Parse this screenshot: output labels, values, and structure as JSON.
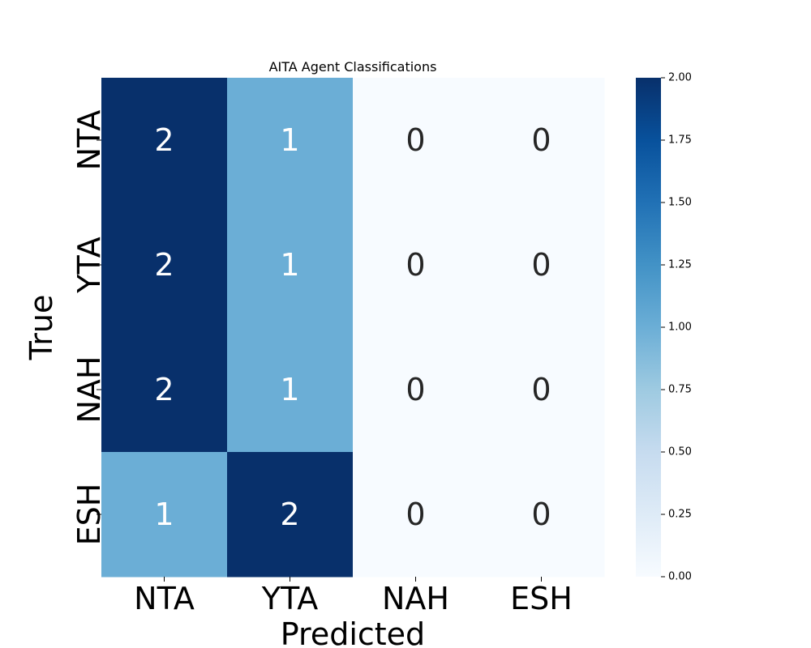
{
  "chart_data": {
    "type": "heatmap",
    "title": "AITA Agent Classifications",
    "xlabel": "Predicted",
    "ylabel": "True",
    "x_categories": [
      "NTA",
      "YTA",
      "NAH",
      "ESH"
    ],
    "y_categories": [
      "NTA",
      "YTA",
      "NAH",
      "ESH"
    ],
    "values": [
      [
        2,
        1,
        0,
        0
      ],
      [
        2,
        1,
        0,
        0
      ],
      [
        2,
        1,
        0,
        0
      ],
      [
        1,
        2,
        0,
        0
      ]
    ],
    "colorbar": {
      "colormap": "Blues",
      "range": [
        0,
        2
      ],
      "ticks": [
        0.0,
        0.25,
        0.5,
        0.75,
        1.0,
        1.25,
        1.5,
        1.75,
        2.0
      ],
      "tick_labels": [
        "0.00",
        "0.25",
        "0.50",
        "0.75",
        "1.00",
        "1.25",
        "1.50",
        "1.75",
        "2.00"
      ]
    },
    "annotations": true,
    "grid": false
  }
}
